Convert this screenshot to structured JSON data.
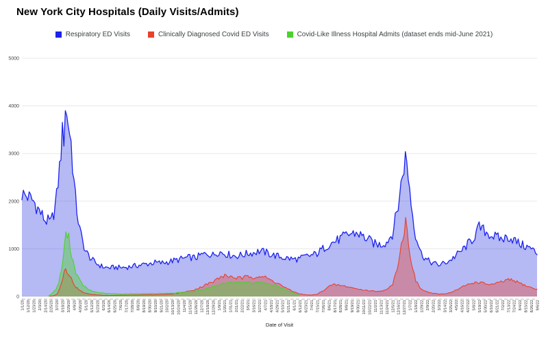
{
  "header": {
    "title": "New York City Hospitals (Daily Visits/Admits)"
  },
  "legend": [
    {
      "label": "Respiratory ED Visits",
      "color": "#1a22ee"
    },
    {
      "label": "Clinically Diagnosed Covid ED Visits",
      "color": "#e8402a"
    },
    {
      "label": "Covid-Like Illness Hospital Admits (dataset ends mid-June 2021)",
      "color": "#4bd22c"
    }
  ],
  "chart_data": {
    "type": "area",
    "title": "New York City Hospitals (Daily Visits/Admits)",
    "xlabel": "Date of Visit",
    "ylabel": "",
    "ylim": [
      0,
      5000
    ],
    "yticks": [
      0,
      1000,
      2000,
      3000,
      4000,
      5000
    ],
    "grid": true,
    "legend_position": "top",
    "x_labels": [
      "1/1/20",
      "1/12/20",
      "1/23/20",
      "2/3/20",
      "2/14/20",
      "2/25/20",
      "3/7/20",
      "3/18/20",
      "3/29/20",
      "4/9/20",
      "4/20/20",
      "5/1/20",
      "5/12/20",
      "5/23/20",
      "6/3/20",
      "6/14/20",
      "6/25/20",
      "7/6/20",
      "7/17/20",
      "7/28/20",
      "8/8/20",
      "8/19/20",
      "8/30/20",
      "9/10/20",
      "9/21/20",
      "10/2/20",
      "10/13/20",
      "10/24/20",
      "11/4/20",
      "11/15/20",
      "11/26/20",
      "12/7/20",
      "12/18/20",
      "12/29/20",
      "1/9/21",
      "1/20/21",
      "1/31/21",
      "2/11/21",
      "2/22/21",
      "3/5/21",
      "3/16/21",
      "3/27/21",
      "4/7/21",
      "4/18/21",
      "4/29/21",
      "5/10/21",
      "5/21/21",
      "6/1/21",
      "6/12/21",
      "6/23/21",
      "7/4/21",
      "7/15/21",
      "7/26/21",
      "8/6/21",
      "8/17/21",
      "8/28/21",
      "9/8/21",
      "9/19/21",
      "9/30/21",
      "10/11/21",
      "10/22/21",
      "11/2/21",
      "11/13/21",
      "11/24/21",
      "12/5/21",
      "12/16/21",
      "12/27/21",
      "1/7/22",
      "1/18/22",
      "1/29/22",
      "2/9/22",
      "2/20/22",
      "3/3/22",
      "3/14/22",
      "3/25/22",
      "4/5/22",
      "4/16/22",
      "4/27/22",
      "5/8/22",
      "5/19/22",
      "5/30/22",
      "6/10/22",
      "6/21/22",
      "7/2/22",
      "7/13/22",
      "7/24/22",
      "8/4/22",
      "8/15/22",
      "8/26/22",
      "9/6/22"
    ],
    "series": [
      {
        "name": "Respiratory ED Visits",
        "color": "#1a22ee",
        "fill": "rgba(60,70,225,0.38)",
        "stroke_width": 1.3,
        "jitter": 0.09,
        "seed": 0,
        "points": [
          [
            0,
            2150
          ],
          [
            1,
            2100
          ],
          [
            2,
            2000
          ],
          [
            3,
            1800
          ],
          [
            4,
            1600
          ],
          [
            5,
            1550
          ],
          [
            5.6,
            1800
          ],
          [
            6,
            2100
          ],
          [
            6.5,
            2700
          ],
          [
            7,
            3400
          ],
          [
            7.2,
            3150
          ],
          [
            7.45,
            4150
          ],
          [
            7.65,
            3600
          ],
          [
            7.85,
            3900
          ],
          [
            8.1,
            3500
          ],
          [
            8.4,
            3400
          ],
          [
            8.8,
            2700
          ],
          [
            9.2,
            2100
          ],
          [
            9.6,
            1700
          ],
          [
            10,
            1400
          ],
          [
            10.5,
            1150
          ],
          [
            11,
            950
          ],
          [
            12,
            780
          ],
          [
            13,
            680
          ],
          [
            14,
            620
          ],
          [
            15,
            600
          ],
          [
            16,
            610
          ],
          [
            17,
            605
          ],
          [
            18,
            615
          ],
          [
            19,
            630
          ],
          [
            20,
            650
          ],
          [
            21,
            670
          ],
          [
            22,
            690
          ],
          [
            23,
            710
          ],
          [
            24,
            700
          ],
          [
            25,
            720
          ],
          [
            26,
            745
          ],
          [
            27,
            770
          ],
          [
            28,
            800
          ],
          [
            29,
            820
          ],
          [
            30,
            810
          ],
          [
            31,
            870
          ],
          [
            32,
            900
          ],
          [
            33,
            870
          ],
          [
            34,
            940
          ],
          [
            35,
            900
          ],
          [
            36,
            870
          ],
          [
            37,
            850
          ],
          [
            38,
            870
          ],
          [
            39,
            900
          ],
          [
            40,
            920
          ],
          [
            41,
            950
          ],
          [
            42,
            930
          ],
          [
            43,
            880
          ],
          [
            44,
            850
          ],
          [
            45,
            820
          ],
          [
            46,
            800
          ],
          [
            47,
            780
          ],
          [
            48,
            790
          ],
          [
            49,
            840
          ],
          [
            50,
            860
          ],
          [
            51,
            900
          ],
          [
            52,
            1000
          ],
          [
            53,
            1090
          ],
          [
            54,
            1150
          ],
          [
            55,
            1210
          ],
          [
            56,
            1280
          ],
          [
            57,
            1320
          ],
          [
            58,
            1330
          ],
          [
            59,
            1250
          ],
          [
            60,
            1180
          ],
          [
            61,
            1100
          ],
          [
            62,
            1090
          ],
          [
            63,
            1140
          ],
          [
            64,
            1320
          ],
          [
            65,
            1900
          ],
          [
            65.8,
            2600
          ],
          [
            66.3,
            2950
          ],
          [
            66.8,
            2500
          ],
          [
            67.3,
            1900
          ],
          [
            68,
            1300
          ],
          [
            69,
            900
          ],
          [
            70,
            760
          ],
          [
            71,
            700
          ],
          [
            72,
            660
          ],
          [
            73,
            700
          ],
          [
            74,
            760
          ],
          [
            75,
            860
          ],
          [
            76,
            960
          ],
          [
            77,
            1090
          ],
          [
            78,
            1220
          ],
          [
            79,
            1450
          ],
          [
            80,
            1370
          ],
          [
            81,
            1290
          ],
          [
            82,
            1240
          ],
          [
            83,
            1200
          ],
          [
            84,
            1250
          ],
          [
            85,
            1190
          ],
          [
            86,
            1100
          ],
          [
            87,
            1050
          ],
          [
            88,
            1000
          ],
          [
            89,
            900
          ]
        ]
      },
      {
        "name": "Clinically Diagnosed Covid ED Visits",
        "color": "#e8402a",
        "fill": "rgba(232,64,42,0.38)",
        "stroke_width": 1.1,
        "jitter": 0.1,
        "seed": 1000,
        "points": [
          [
            4.8,
            5
          ],
          [
            5.4,
            15
          ],
          [
            6,
            40
          ],
          [
            6.5,
            140
          ],
          [
            7,
            380
          ],
          [
            7.5,
            600
          ],
          [
            7.9,
            520
          ],
          [
            8.3,
            430
          ],
          [
            8.8,
            300
          ],
          [
            9.3,
            200
          ],
          [
            10,
            120
          ],
          [
            11,
            65
          ],
          [
            12,
            45
          ],
          [
            13,
            32
          ],
          [
            14,
            25
          ],
          [
            15,
            22
          ],
          [
            16,
            22
          ],
          [
            17,
            25
          ],
          [
            18,
            26
          ],
          [
            19,
            28
          ],
          [
            20,
            30
          ],
          [
            21,
            32
          ],
          [
            22,
            34
          ],
          [
            23,
            36
          ],
          [
            24,
            40
          ],
          [
            25,
            45
          ],
          [
            26,
            55
          ],
          [
            27,
            70
          ],
          [
            28,
            90
          ],
          [
            29,
            115
          ],
          [
            30,
            150
          ],
          [
            31,
            200
          ],
          [
            32,
            260
          ],
          [
            33,
            300
          ],
          [
            34,
            390
          ],
          [
            35,
            430
          ],
          [
            36,
            420
          ],
          [
            37,
            390
          ],
          [
            38,
            380
          ],
          [
            39,
            420
          ],
          [
            40,
            410
          ],
          [
            41,
            430
          ],
          [
            42,
            400
          ],
          [
            43,
            340
          ],
          [
            44,
            290
          ],
          [
            45,
            220
          ],
          [
            46,
            150
          ],
          [
            47,
            95
          ],
          [
            48,
            55
          ],
          [
            49,
            35
          ],
          [
            50,
            28
          ],
          [
            51,
            45
          ],
          [
            52,
            120
          ],
          [
            53,
            210
          ],
          [
            54,
            245
          ],
          [
            55,
            230
          ],
          [
            56,
            210
          ],
          [
            57,
            185
          ],
          [
            58,
            155
          ],
          [
            59,
            135
          ],
          [
            60,
            120
          ],
          [
            61,
            110
          ],
          [
            62,
            112
          ],
          [
            63,
            135
          ],
          [
            64,
            240
          ],
          [
            65,
            700
          ],
          [
            65.8,
            1250
          ],
          [
            66.3,
            1560
          ],
          [
            66.7,
            1250
          ],
          [
            67.2,
            800
          ],
          [
            68,
            330
          ],
          [
            69,
            150
          ],
          [
            70,
            95
          ],
          [
            71,
            65
          ],
          [
            72,
            50
          ],
          [
            73,
            55
          ],
          [
            74,
            80
          ],
          [
            75,
            130
          ],
          [
            76,
            190
          ],
          [
            77,
            250
          ],
          [
            78,
            285
          ],
          [
            79,
            300
          ],
          [
            80,
            265
          ],
          [
            81,
            250
          ],
          [
            82,
            270
          ],
          [
            83,
            310
          ],
          [
            84,
            350
          ],
          [
            85,
            330
          ],
          [
            86,
            280
          ],
          [
            87,
            230
          ],
          [
            88,
            185
          ],
          [
            89,
            145
          ]
        ]
      },
      {
        "name": "Covid-Like Illness Hospital Admits",
        "color": "#4bd22c",
        "fill": "rgba(75,210,44,0.42)",
        "stroke_width": 1.1,
        "jitter": 0.09,
        "seed": 2000,
        "points": [
          [
            4.6,
            10
          ],
          [
            5,
            40
          ],
          [
            5.4,
            90
          ],
          [
            5.9,
            150
          ],
          [
            6.3,
            260
          ],
          [
            6.8,
            520
          ],
          [
            7.2,
            900
          ],
          [
            7.6,
            1280
          ],
          [
            8,
            1300
          ],
          [
            8.4,
            1000
          ],
          [
            8.9,
            700
          ],
          [
            9.4,
            480
          ],
          [
            10,
            330
          ],
          [
            10.6,
            230
          ],
          [
            11.3,
            160
          ],
          [
            12,
            115
          ],
          [
            13,
            85
          ],
          [
            14,
            68
          ],
          [
            15,
            58
          ],
          [
            16,
            55
          ],
          [
            17,
            52
          ],
          [
            18,
            52
          ],
          [
            19,
            55
          ],
          [
            20,
            55
          ],
          [
            21,
            58
          ],
          [
            22,
            60
          ],
          [
            23,
            62
          ],
          [
            24,
            62
          ],
          [
            25,
            65
          ],
          [
            26,
            70
          ],
          [
            27,
            78
          ],
          [
            28,
            88
          ],
          [
            29,
            100
          ],
          [
            30,
            115
          ],
          [
            31,
            140
          ],
          [
            32,
            175
          ],
          [
            33,
            205
          ],
          [
            34,
            250
          ],
          [
            35,
            280
          ],
          [
            36,
            290
          ],
          [
            37,
            280
          ],
          [
            38,
            275
          ],
          [
            39,
            290
          ],
          [
            40,
            285
          ],
          [
            41,
            295
          ],
          [
            42,
            280
          ],
          [
            43,
            250
          ],
          [
            44,
            215
          ],
          [
            45,
            170
          ],
          [
            46,
            120
          ],
          [
            47,
            75
          ],
          [
            47.8,
            45
          ]
        ]
      }
    ]
  }
}
